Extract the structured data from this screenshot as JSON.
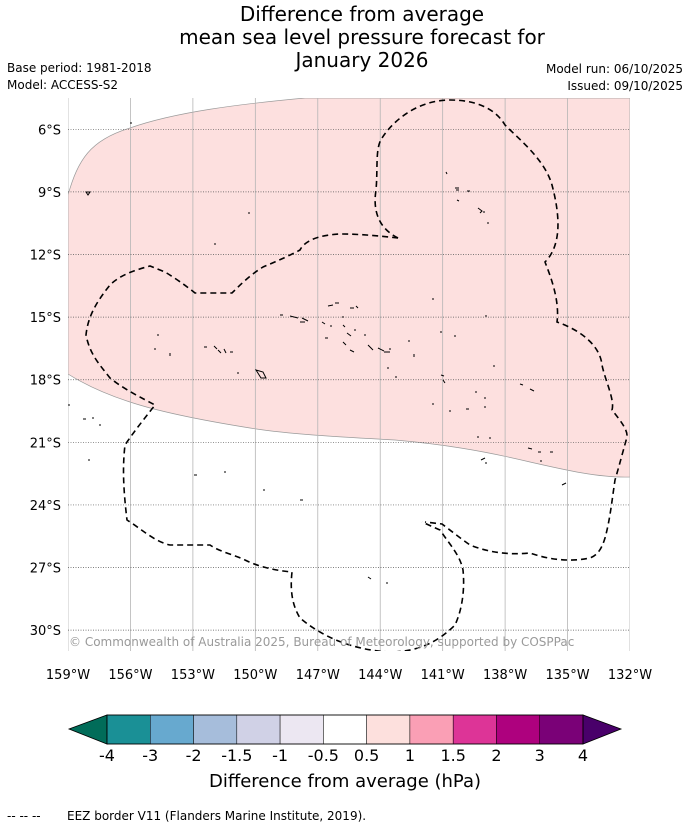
{
  "title": {
    "line1": "Difference from average",
    "line2": "mean sea level pressure forecast for",
    "line3": "January 2026"
  },
  "meta": {
    "base_period": "Base period: 1981-2018",
    "model": "Model: ACCESS-S2",
    "model_run": "Model run: 06/10/2025",
    "issued": "Issued: 09/10/2025"
  },
  "map": {
    "lat_labels": [
      "6°S",
      "9°S",
      "12°S",
      "15°S",
      "18°S",
      "21°S",
      "24°S",
      "27°S",
      "30°S"
    ],
    "lon_labels": [
      "159°W",
      "156°W",
      "153°W",
      "150°W",
      "147°W",
      "144°W",
      "141°W",
      "138°W",
      "135°W",
      "132°W"
    ],
    "lat_range": [
      -31,
      -4.5
    ],
    "lon_range": [
      -159,
      -132
    ],
    "anomaly_region_color": "#fde0df",
    "copyright": "© Commonwealth of Australia 2025, Bureau of Meteorology, supported by COSPPac"
  },
  "colorbar": {
    "title": "Difference from average (hPa)",
    "tick_labels": [
      "-4",
      "-3",
      "-2",
      "-1.5",
      "-1",
      "-0.5",
      "0.5",
      "1",
      "1.5",
      "2",
      "3",
      "4"
    ],
    "colors": [
      "#1a9096",
      "#67a9cf",
      "#a6bddb",
      "#d0d1e6",
      "#ece7f2",
      "#ffffff",
      "#fde0dd",
      "#fa9fb5",
      "#dd3497",
      "#ae017e",
      "#7a0177"
    ],
    "under_color": "#016c59",
    "over_color": "#49006a"
  },
  "legend": {
    "eez_symbol": "-- -- --",
    "eez_text": "EEZ border V11 (Flanders Marine Institute, 2019)."
  }
}
